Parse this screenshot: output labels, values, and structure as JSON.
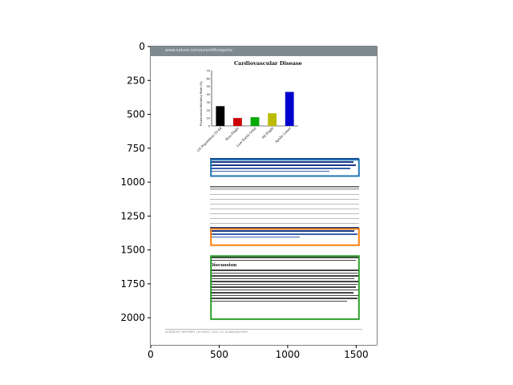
{
  "chart_data": {
    "type": "image",
    "title": "",
    "xlabel": "",
    "ylabel": "",
    "xlim": [
      0,
      1650
    ],
    "ylim": [
      2200,
      0
    ],
    "x_ticks": [
      0,
      500,
      1000,
      1500
    ],
    "y_ticks": [
      0,
      250,
      500,
      750,
      1000,
      1250,
      1500,
      1750,
      2000
    ],
    "annotations": [
      {
        "type": "rectangle",
        "color": "#1f77b4",
        "x": [
          440,
          1520
        ],
        "y": [
          835,
          955
        ]
      },
      {
        "type": "rectangle",
        "color": "#ff7f0e",
        "x": [
          440,
          1520
        ],
        "y": [
          1345,
          1465
        ]
      },
      {
        "type": "rectangle",
        "color": "#2ca02c",
        "x": [
          440,
          1520
        ],
        "y": [
          1545,
          2010
        ]
      }
    ]
  },
  "document": {
    "header_url": "www.nature.com/scientificreports",
    "figure_title": "Cardiovascular Disease",
    "figure_ylabel": "Proportional Mortality Rate (%)",
    "figure_yticks": [
      "0",
      "10",
      "20",
      "30",
      "40",
      "50",
      "60",
      "70"
    ],
    "bars": [
      {
        "label": "US Population 55-64",
        "value": 25,
        "color": "#000000"
      },
      {
        "label": "Non-Flight",
        "value": 10,
        "color": "#cc0000"
      },
      {
        "label": "Low Earth Orbit",
        "value": 11,
        "color": "#00aa00"
      },
      {
        "label": "All Flight",
        "value": 16,
        "color": "#bbbb00"
      },
      {
        "label": "Apollo Lunar",
        "value": 43,
        "color": "#0000cc"
      }
    ],
    "discussion_heading": "Discussion",
    "footer": "SCIENTIFIC REPORTS | 6:29901 | DOI: 10.1038/srep29901"
  }
}
